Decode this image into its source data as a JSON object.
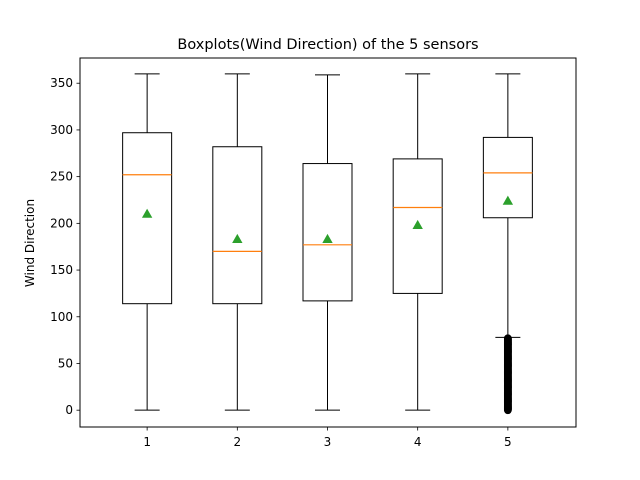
{
  "chart_data": {
    "type": "boxplot",
    "title": "Boxplots(Wind Direction) of the 5 sensors",
    "xlabel": "",
    "ylabel": "Wind Direction",
    "categories": [
      "1",
      "2",
      "3",
      "4",
      "5"
    ],
    "ylim": [
      -18,
      377
    ],
    "yticks": [
      0,
      50,
      100,
      150,
      200,
      250,
      300,
      350
    ],
    "grid": false,
    "boxes": [
      {
        "category": "1",
        "whisker_low": 0,
        "q1": 114,
        "median": 252,
        "q3": 297,
        "whisker_high": 360,
        "mean": 210,
        "outliers_range": null
      },
      {
        "category": "2",
        "whisker_low": 0,
        "q1": 114,
        "median": 170,
        "q3": 282,
        "whisker_high": 360,
        "mean": 183,
        "outliers_range": null
      },
      {
        "category": "3",
        "whisker_low": 0,
        "q1": 117,
        "median": 177,
        "q3": 264,
        "whisker_high": 359,
        "mean": 183,
        "outliers_range": null
      },
      {
        "category": "4",
        "whisker_low": 0,
        "q1": 125,
        "median": 217,
        "q3": 269,
        "whisker_high": 360,
        "mean": 198,
        "outliers_range": null
      },
      {
        "category": "5",
        "whisker_low": 78,
        "q1": 206,
        "median": 254,
        "q3": 292,
        "whisker_high": 360,
        "mean": 224,
        "outliers_range": [
          0,
          77
        ]
      }
    ],
    "colors": {
      "box": "#000000",
      "median": "#ff7f0e",
      "mean": "#2ca02c",
      "outlier": "#000000"
    }
  }
}
